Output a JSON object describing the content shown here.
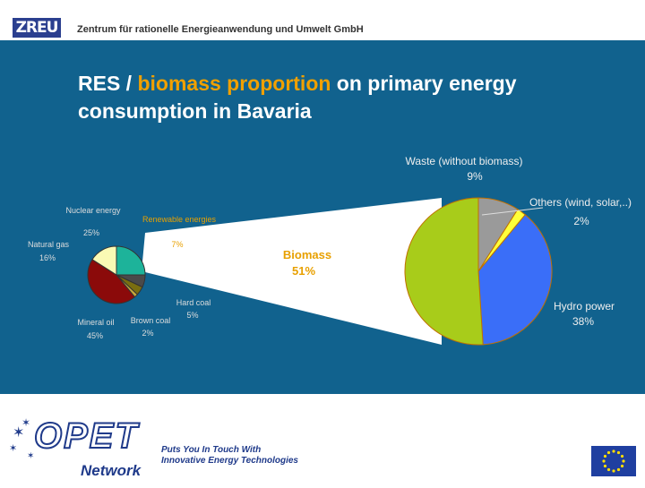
{
  "header": {
    "logo_text": "ZREU",
    "org_name": "Zentrum für rationelle Energieanwendung und Umwelt GmbH"
  },
  "slide": {
    "title_part1": "RES / ",
    "title_highlight": "biomass proportion",
    "title_part2": " on primary energy consumption in Bavaria"
  },
  "chart_data": [
    {
      "type": "pie",
      "slices": [
        {
          "label": "Nuclear energy",
          "value": 25,
          "value_label": "25%",
          "color": "#1db39a"
        },
        {
          "label": "Renewable energies",
          "value": 7,
          "value_label": "7%",
          "color": "#4a4a4a"
        },
        {
          "label": "Hard coal",
          "value": 5,
          "value_label": "5%",
          "color": "#7a6e10"
        },
        {
          "label": "Brown coal",
          "value": 2,
          "value_label": "2%",
          "color": "#c9a73a"
        },
        {
          "label": "Mineral oil",
          "value": 45,
          "value_label": "45%",
          "color": "#8b0a0a"
        },
        {
          "label": "Natural gas",
          "value": 16,
          "value_label": "16%",
          "color": "#fafab4"
        }
      ]
    },
    {
      "type": "pie",
      "slices": [
        {
          "label": "Waste (without biomass)",
          "value": 9,
          "value_label": "9%",
          "color": "#9a9a9a"
        },
        {
          "label": "Others (wind, solar,..)",
          "value": 2,
          "value_label": "2%",
          "color": "#ffff3a"
        },
        {
          "label": "Hydro power",
          "value": 38,
          "value_label": "38%",
          "color": "#3a6ef8"
        },
        {
          "label": "Biomass",
          "value": 51,
          "value_label": "51%",
          "color": "#a8cc1a"
        }
      ]
    }
  ],
  "footer": {
    "opet_logo": "OPET",
    "network_logo": "Network",
    "slogan_line1": "Puts You In Touch With",
    "slogan_line2": "Innovative Energy Technologies",
    "eu_flag_icon": "eu-flag-icon"
  }
}
